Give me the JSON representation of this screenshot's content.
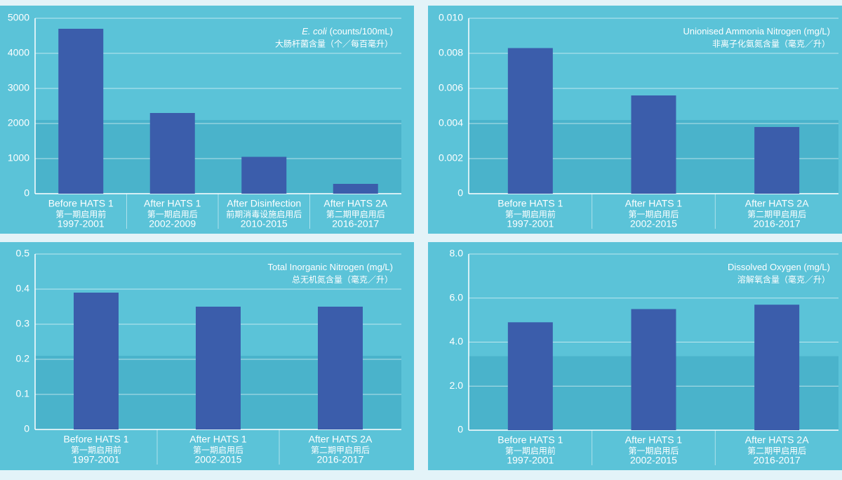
{
  "chart_data": [
    {
      "type": "bar",
      "title_italic": "E. coli",
      "title": "(counts/100mL)",
      "title_zh": "大肠杆菌含量（个／每百毫升）",
      "categories": [
        "Before HATS 1",
        "After HATS 1",
        "After Disinfection",
        "After HATS 2A"
      ],
      "categories_zh": [
        "第一期启用前",
        "第一期启用后",
        "前期消毒设施启用后",
        "第二期甲启用后"
      ],
      "periods": [
        "1997-2001",
        "2002-2009",
        "2010-2015",
        "2016-2017"
      ],
      "values": [
        4700,
        2300,
        1050,
        280
      ],
      "color": "#3b5dab",
      "ylim": [
        0,
        5000
      ],
      "yticks": [
        0,
        1000,
        2000,
        3000,
        4000,
        5000
      ],
      "grid": true
    },
    {
      "type": "bar",
      "title": "Unionised Ammonia Nitrogen (mg/L)",
      "title_zh": "非离子化氨氮含量（毫克／升）",
      "categories": [
        "Before HATS 1",
        "After HATS 1",
        "After HATS 2A"
      ],
      "categories_zh": [
        "第一期启用前",
        "第一期启用后",
        "第二期甲启用后"
      ],
      "periods": [
        "1997-2001",
        "2002-2015",
        "2016-2017"
      ],
      "values": [
        0.0083,
        0.0056,
        0.0038
      ],
      "color": "#3b5dab",
      "ylim": [
        0,
        0.01
      ],
      "yticks": [
        0,
        {
          "value": 0.002,
          "label": "0.002"
        },
        {
          "value": 0.004,
          "label": "0.004"
        },
        {
          "value": 0.006,
          "label": "0.006"
        },
        {
          "value": 0.008,
          "label": "0.008"
        },
        {
          "value": 0.01,
          "label": "0.010"
        }
      ],
      "grid": true
    },
    {
      "type": "bar",
      "title": "Total Inorganic Nitrogen (mg/L)",
      "title_zh": "总无机氮含量（毫克／升）",
      "categories": [
        "Before HATS 1",
        "After HATS 1",
        "After HATS 2A"
      ],
      "categories_zh": [
        "第一期启用前",
        "第一期启用后",
        "第二期甲启用后"
      ],
      "periods": [
        "1997-2001",
        "2002-2015",
        "2016-2017"
      ],
      "values": [
        0.39,
        0.35,
        0.35
      ],
      "color": "#3b5dab",
      "ylim": [
        0,
        0.5
      ],
      "yticks": [
        0,
        0.1,
        0.2,
        0.3,
        0.4,
        0.5
      ],
      "grid": true
    },
    {
      "type": "bar",
      "title": "Dissolved Oxygen (mg/L)",
      "title_zh": "溶解氧含量（毫克／升）",
      "categories": [
        "Before HATS 1",
        "After HATS 1",
        "After HATS 2A"
      ],
      "categories_zh": [
        "第一期启用前",
        "第一期启用后",
        "第二期甲启用后"
      ],
      "periods": [
        "1997-2001",
        "2002-2015",
        "2016-2017"
      ],
      "values": [
        4.9,
        5.5,
        5.7
      ],
      "color": "#3b5dab",
      "ylim": [
        0,
        8
      ],
      "yticks": [
        0,
        {
          "value": 2,
          "label": "2.0"
        },
        {
          "value": 4,
          "label": "4.0"
        },
        {
          "value": 6,
          "label": "6.0"
        },
        {
          "value": 8,
          "label": "8.0"
        }
      ],
      "grid": true
    }
  ]
}
